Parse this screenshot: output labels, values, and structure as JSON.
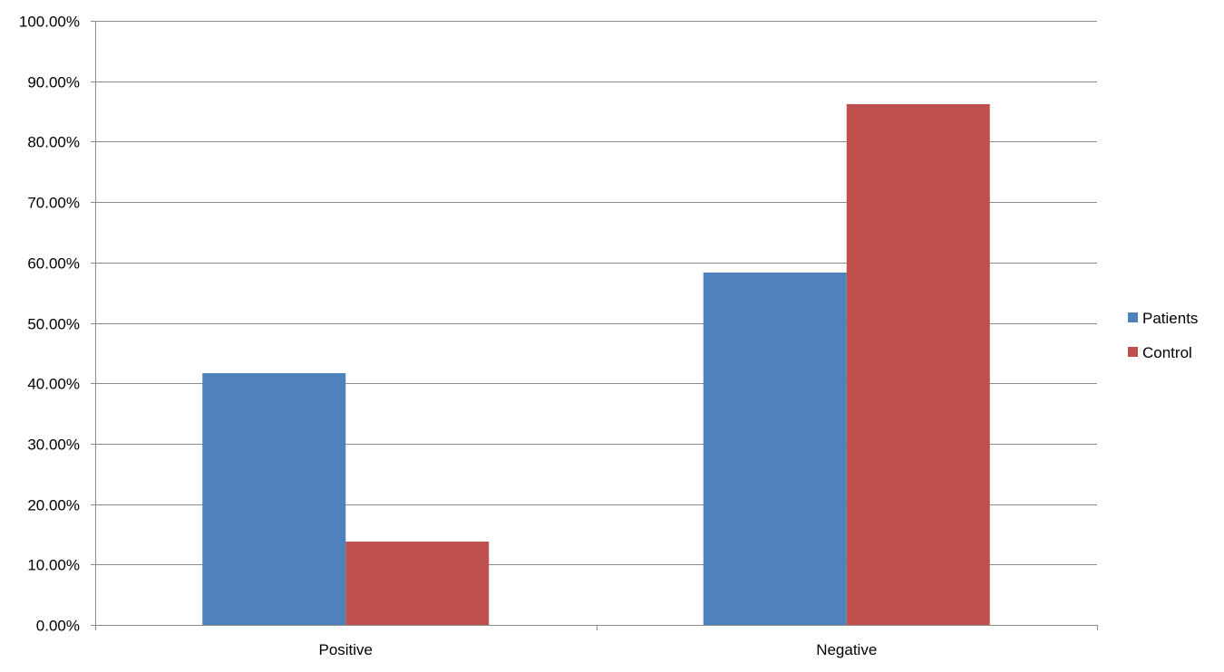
{
  "chart_data": {
    "type": "bar",
    "categories": [
      "Positive",
      "Negative"
    ],
    "series": [
      {
        "name": "Patients",
        "values": [
          0.4167,
          0.5833
        ],
        "color": "#4F81BD"
      },
      {
        "name": "Control",
        "values": [
          0.1379,
          0.8621
        ],
        "color": "#C0504D"
      }
    ],
    "ylim": [
      0,
      1
    ],
    "y_ticks": [
      0,
      0.1,
      0.2,
      0.3,
      0.4,
      0.5,
      0.6,
      0.7,
      0.8,
      0.9,
      1.0
    ],
    "y_tick_labels": [
      "0.00%",
      "10.00%",
      "20.00%",
      "30.00%",
      "40.00%",
      "50.00%",
      "60.00%",
      "70.00%",
      "80.00%",
      "90.00%",
      "100.00%"
    ],
    "grid": true,
    "legend_position": "right",
    "title": "",
    "xlabel": "",
    "ylabel": ""
  },
  "colors": {
    "gridline": "#8C8C8C",
    "axis": "#8C8C8C"
  }
}
